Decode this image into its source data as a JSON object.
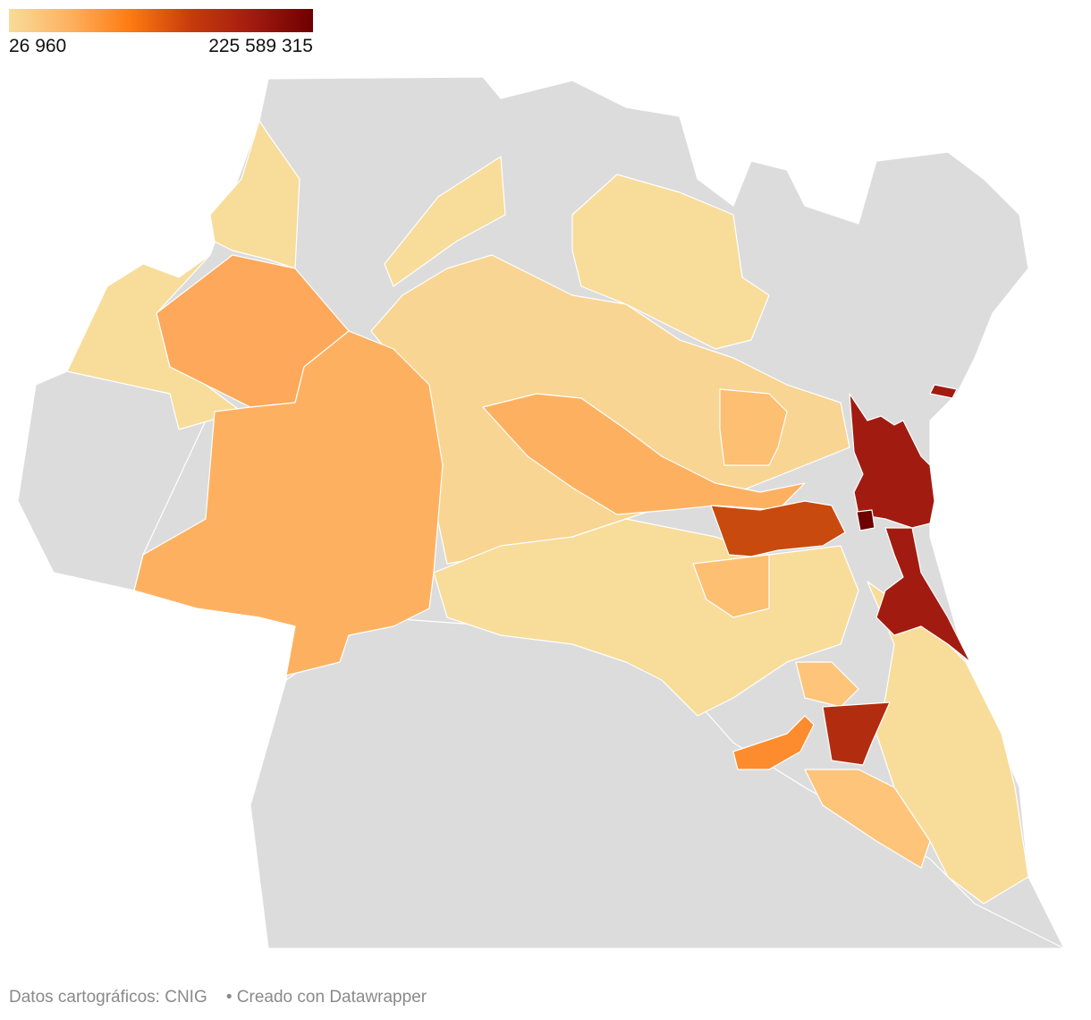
{
  "legend": {
    "min_label": "26 960",
    "max_label": "225 589 315",
    "colors": [
      "#f8dc9a",
      "#fdb160",
      "#fd7a10",
      "#c63b0c",
      "#a21b10",
      "#6e0000"
    ]
  },
  "footer": {
    "source": "Datos cartográficos: CNIG",
    "credit": "• Creado con Datawrapper"
  },
  "map": {
    "background_color": "#dcdcdc",
    "boundary_color": "#ffffff",
    "regions": [
      {
        "id": "north-strip",
        "color": "#dcdcdc"
      },
      {
        "id": "west-plain",
        "color": "#dcdcdc"
      },
      {
        "id": "south-plain",
        "color": "#dcdcdc"
      },
      {
        "id": "far-west-light",
        "color": "#f8dc9a"
      },
      {
        "id": "north-west-light",
        "color": "#f8dc9a"
      },
      {
        "id": "upper-central-light",
        "color": "#f8dc9a"
      },
      {
        "id": "north-center-light",
        "color": "#f8dc9a"
      },
      {
        "id": "central-band-light",
        "color": "#f8d592"
      },
      {
        "id": "south-central-light",
        "color": "#f8dc9a"
      },
      {
        "id": "coastal-south-light",
        "color": "#f8dc9a"
      },
      {
        "id": "west-orange-large",
        "color": "#fdb160"
      },
      {
        "id": "north-west-orange",
        "color": "#fda85a"
      },
      {
        "id": "central-diagonal-orange",
        "color": "#fdb160"
      },
      {
        "id": "mid-orange-1",
        "color": "#fdbf72"
      },
      {
        "id": "mid-orange-2",
        "color": "#fdbf72"
      },
      {
        "id": "south-orange",
        "color": "#fdc47a"
      },
      {
        "id": "south-orange-bright",
        "color": "#fd8c2e"
      },
      {
        "id": "east-orange-dark",
        "color": "#c84a0e"
      },
      {
        "id": "south-dark",
        "color": "#b22c10"
      },
      {
        "id": "coast-dark-north",
        "color": "#a21b10"
      },
      {
        "id": "coast-dark-south",
        "color": "#a21b10"
      },
      {
        "id": "core-darkest",
        "color": "#6e0000"
      }
    ]
  }
}
